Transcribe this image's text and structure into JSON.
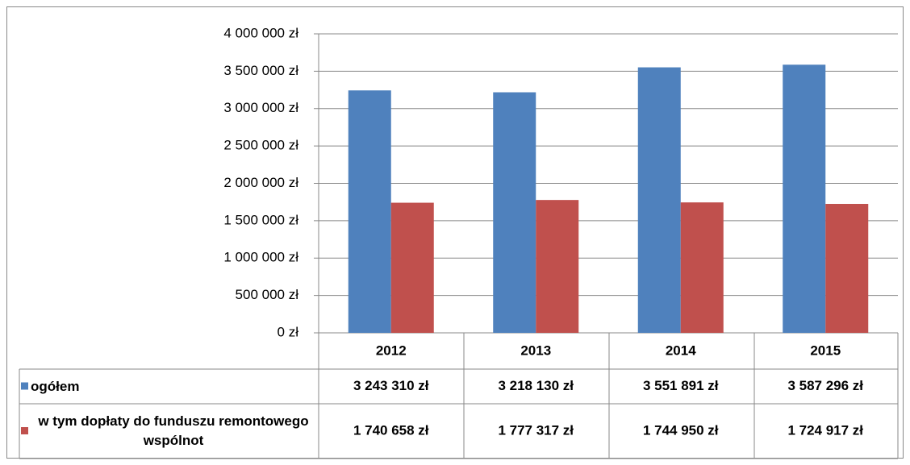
{
  "chart_data": {
    "type": "bar",
    "categories": [
      "2012",
      "2013",
      "2014",
      "2015"
    ],
    "series": [
      {
        "name": "ogółem",
        "color": "#4f81bd",
        "values": [
          3243310,
          3218130,
          3551891,
          3587296
        ],
        "value_labels": [
          "3 243 310 zł",
          "3 218 130 zł",
          "3 551 891 zł",
          "3 587 296 zł"
        ]
      },
      {
        "name": "w tym dopłaty do funduszu remontowego wspólnot",
        "color": "#c0504d",
        "values": [
          1740658,
          1777317,
          1744950,
          1724917
        ],
        "value_labels": [
          "1 740 658 zł",
          "1 777 317 zł",
          "1 744 950 zł",
          "1 724 917 zł"
        ]
      }
    ],
    "ylim": [
      0,
      4000000
    ],
    "yticks": [
      {
        "value": 0,
        "label": "0 zł"
      },
      {
        "value": 500000,
        "label": "500 000 zł"
      },
      {
        "value": 1000000,
        "label": "1 000 000 zł"
      },
      {
        "value": 1500000,
        "label": "1 500 000 zł"
      },
      {
        "value": 2000000,
        "label": "2 000 000 zł"
      },
      {
        "value": 2500000,
        "label": "2 500 000 zł"
      },
      {
        "value": 3000000,
        "label": "3 000 000 zł"
      },
      {
        "value": 3500000,
        "label": "3 500 000 zł"
      },
      {
        "value": 4000000,
        "label": "4 000 000 zł"
      }
    ],
    "grid": true
  }
}
